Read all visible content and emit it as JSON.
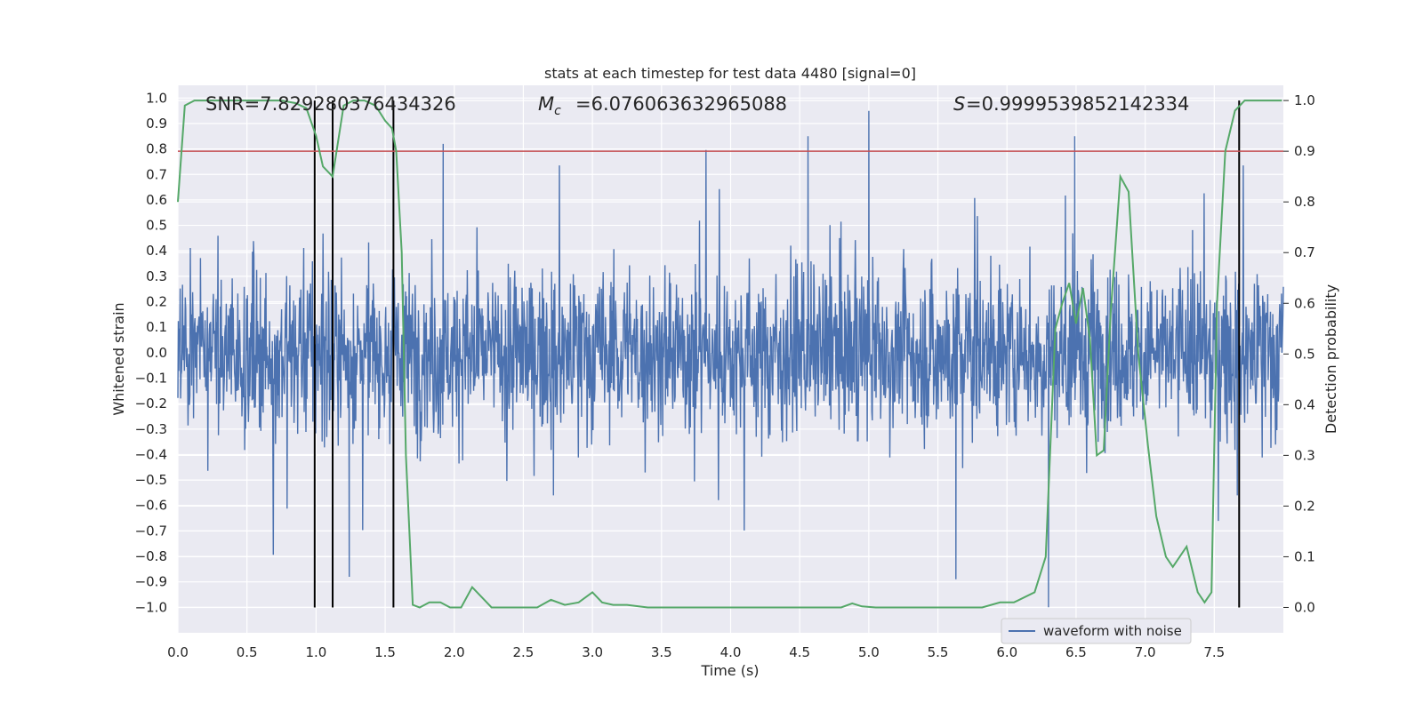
{
  "chart_data": {
    "type": "line",
    "title": "stats at each timestep for test data 4480 [signal=0]",
    "xlabel": "Time (s)",
    "ylabel_left": "Whitened strain",
    "ylabel_right": "Detection probability",
    "xlim": [
      0.0,
      8.0
    ],
    "ylim_left": [
      -1.1,
      1.05
    ],
    "ylim_right": [
      -0.05,
      1.03
    ],
    "grid": true,
    "background": "#eaeaf2",
    "x_ticks": [
      "0.0",
      "0.5",
      "1.0",
      "1.5",
      "2.0",
      "2.5",
      "3.0",
      "3.5",
      "4.0",
      "4.5",
      "5.0",
      "5.5",
      "6.0",
      "6.5",
      "7.0",
      "7.5"
    ],
    "y_ticks_left": [
      "1.0",
      "0.9",
      "0.8",
      "0.7",
      "0.6",
      "0.5",
      "0.4",
      "0.3",
      "0.2",
      "0.1",
      "0.0",
      "−0.1",
      "−0.2",
      "−0.3",
      "−0.4",
      "−0.5",
      "−0.6",
      "−0.7",
      "−0.8",
      "−0.9",
      "−1.0"
    ],
    "y_ticks_right": [
      "1.0",
      "0.9",
      "0.8",
      "0.7",
      "0.6",
      "0.5",
      "0.4",
      "0.3",
      "0.2",
      "0.1",
      "0.0"
    ],
    "annotations": {
      "snr": "SNR=7.829280376434326",
      "mc": "=6.076063632965088",
      "s": "=0.9999539852142334"
    },
    "legend": {
      "position": "lower-right",
      "entries": [
        "waveform with noise"
      ]
    },
    "series": [
      {
        "name": "waveform with noise",
        "color": "#4c72b0",
        "axis": "left",
        "description": "dense noisy strain, mostly within ±0.4, peaks near ±0.9",
        "notable_peaks": [
          {
            "x": 5.0,
            "y": 0.95
          },
          {
            "x": 6.3,
            "y": -1.0
          },
          {
            "x": 5.63,
            "y": -0.89
          },
          {
            "x": 1.24,
            "y": -0.88
          },
          {
            "x": 1.92,
            "y": 0.82
          },
          {
            "x": 6.49,
            "y": 0.85
          },
          {
            "x": 4.56,
            "y": 0.85
          }
        ]
      },
      {
        "color": "#55a868",
        "axis": "right",
        "x": [
          0.0,
          0.05,
          0.12,
          0.2,
          0.3,
          0.45,
          0.6,
          0.75,
          0.85,
          0.93,
          1.0,
          1.05,
          1.12,
          1.2,
          1.27,
          1.35,
          1.43,
          1.5,
          1.55,
          1.58,
          1.62,
          1.65,
          1.7,
          1.75,
          1.82,
          1.9,
          1.97,
          2.05,
          2.13,
          2.2,
          2.27,
          2.35,
          2.45,
          2.52,
          2.6,
          2.7,
          2.8,
          2.9,
          3.0,
          3.07,
          3.15,
          3.25,
          3.4,
          3.6,
          3.8,
          4.0,
          4.2,
          4.4,
          4.6,
          4.8,
          4.88,
          4.95,
          5.05,
          5.2,
          5.4,
          5.6,
          5.75,
          5.82,
          5.95,
          6.05,
          6.2,
          6.28,
          6.35,
          6.4,
          6.45,
          6.5,
          6.55,
          6.6,
          6.65,
          6.7,
          6.75,
          6.82,
          6.88,
          6.95,
          7.02,
          7.08,
          7.15,
          7.2,
          7.3,
          7.38,
          7.43,
          7.48,
          7.52,
          7.58,
          7.65,
          7.72,
          7.8,
          7.9,
          7.99
        ],
        "values": [
          0.8,
          0.99,
          1.0,
          1.0,
          1.0,
          1.0,
          1.0,
          1.0,
          0.995,
          0.985,
          0.93,
          0.87,
          0.85,
          0.99,
          1.0,
          1.0,
          0.99,
          0.96,
          0.945,
          0.9,
          0.7,
          0.3,
          0.005,
          0.0,
          0.01,
          0.01,
          0.0,
          0.0,
          0.04,
          0.02,
          0.0,
          0.0,
          0.0,
          0.0,
          0.0,
          0.015,
          0.005,
          0.01,
          0.03,
          0.01,
          0.005,
          0.005,
          0.0,
          0.0,
          0.0,
          0.0,
          0.0,
          0.0,
          0.0,
          0.0,
          0.008,
          0.002,
          0.0,
          0.0,
          0.0,
          0.0,
          0.0,
          0.0,
          0.01,
          0.01,
          0.03,
          0.1,
          0.55,
          0.6,
          0.64,
          0.56,
          0.63,
          0.53,
          0.3,
          0.31,
          0.58,
          0.85,
          0.82,
          0.5,
          0.32,
          0.18,
          0.1,
          0.08,
          0.12,
          0.03,
          0.01,
          0.03,
          0.6,
          0.9,
          0.98,
          1.0,
          1.0,
          1.0,
          1.0
        ]
      }
    ],
    "threshold_line": {
      "color": "#c44e52",
      "value_right_axis": 0.9
    },
    "vertical_markers_x": [
      0.99,
      1.12,
      1.56,
      7.68
    ]
  }
}
